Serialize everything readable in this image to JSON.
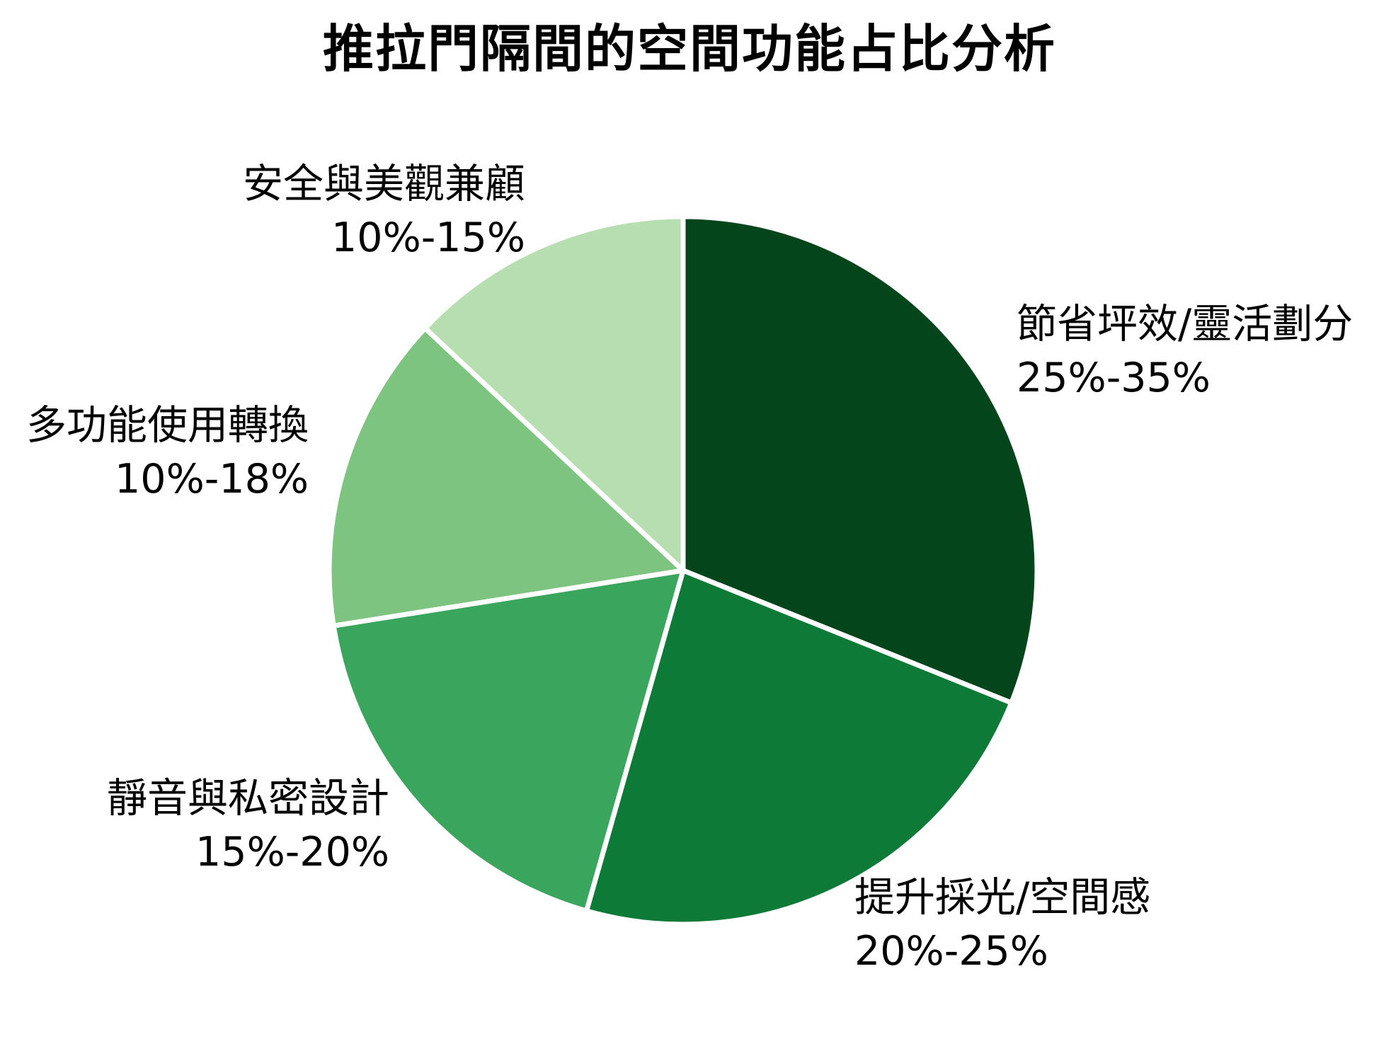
{
  "title": "推拉門隔間的空間功能占比分析",
  "chart_data": {
    "type": "pie",
    "title": "推拉門隔間的空間功能占比分析",
    "start_angle": "12-oclock",
    "direction": "clockwise",
    "stroke_color": "#ffffff",
    "background_color": "#ffffff",
    "slices": [
      {
        "label": "節省坪效/靈活劃分",
        "range": "25%-35%",
        "percent_min": 25,
        "percent_max": 35,
        "fraction": 31.1,
        "color": "#04451c"
      },
      {
        "label": "提升採光/空間感",
        "range": "20%-25%",
        "percent_min": 20,
        "percent_max": 25,
        "fraction": 23.3,
        "color": "#0e7a38"
      },
      {
        "label": "靜音與私密設計",
        "range": "15%-20%",
        "percent_min": 15,
        "percent_max": 20,
        "fraction": 18.1,
        "color": "#3aa55c"
      },
      {
        "label": "多功能使用轉換",
        "range": "10%-18%",
        "percent_min": 10,
        "percent_max": 18,
        "fraction": 14.5,
        "color": "#7cc47f"
      },
      {
        "label": "安全與美觀兼顧",
        "range": "10%-15%",
        "percent_min": 10,
        "percent_max": 15,
        "fraction": 13.0,
        "color": "#b7deb1"
      }
    ]
  }
}
